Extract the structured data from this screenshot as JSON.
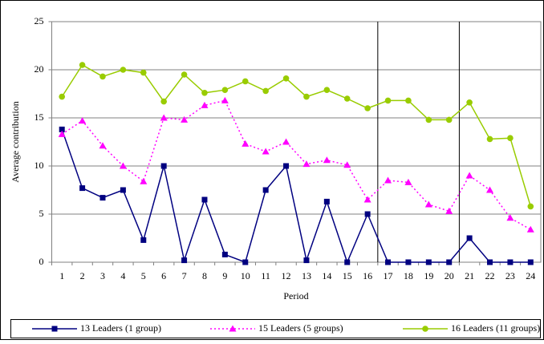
{
  "chart_data": {
    "type": "line",
    "y_label": "Average contribution",
    "x_label": "Period",
    "categories": [
      "1",
      "2",
      "3",
      "4",
      "5",
      "6",
      "7",
      "8",
      "9",
      "10",
      "11",
      "12",
      "13",
      "14",
      "15",
      "16",
      "17",
      "18",
      "19",
      "20",
      "21",
      "22",
      "23",
      "24"
    ],
    "series": [
      {
        "name": "13 Leaders (1 group)",
        "color": "#000080",
        "marker": "square",
        "line_style": "solid",
        "values": [
          13.8,
          7.7,
          6.7,
          7.5,
          2.3,
          10,
          0.2,
          6.5,
          0.8,
          0,
          7.5,
          10,
          0.2,
          6.3,
          0,
          5,
          0,
          0,
          0,
          0,
          2.5,
          0,
          0,
          0
        ]
      },
      {
        "name": "15 Leaders (5 groups)",
        "color": "#ff00ff",
        "marker": "triangle",
        "line_style": "dotted",
        "values": [
          13.3,
          14.7,
          12.1,
          10,
          8.4,
          15,
          14.8,
          16.3,
          16.8,
          12.3,
          11.5,
          12.5,
          10.2,
          10.6,
          10.1,
          6.5,
          8.5,
          8.3,
          6,
          5.3,
          9,
          7.5,
          4.6,
          3.4
        ]
      },
      {
        "name": "16 Leaders (11 groups)",
        "color": "#99cc00",
        "marker": "circle",
        "line_style": "solid",
        "values": [
          17.2,
          20.5,
          19.3,
          20,
          19.7,
          16.7,
          19.5,
          17.6,
          17.9,
          18.8,
          17.8,
          19.1,
          17.2,
          17.9,
          17,
          16,
          16.8,
          16.8,
          14.8,
          14.8,
          16.6,
          12.8,
          12.9,
          5.8
        ]
      }
    ],
    "ylim": [
      0,
      25
    ],
    "yticks": [
      0,
      5,
      10,
      15,
      20,
      25
    ],
    "grid": true,
    "legend": "bottom"
  }
}
